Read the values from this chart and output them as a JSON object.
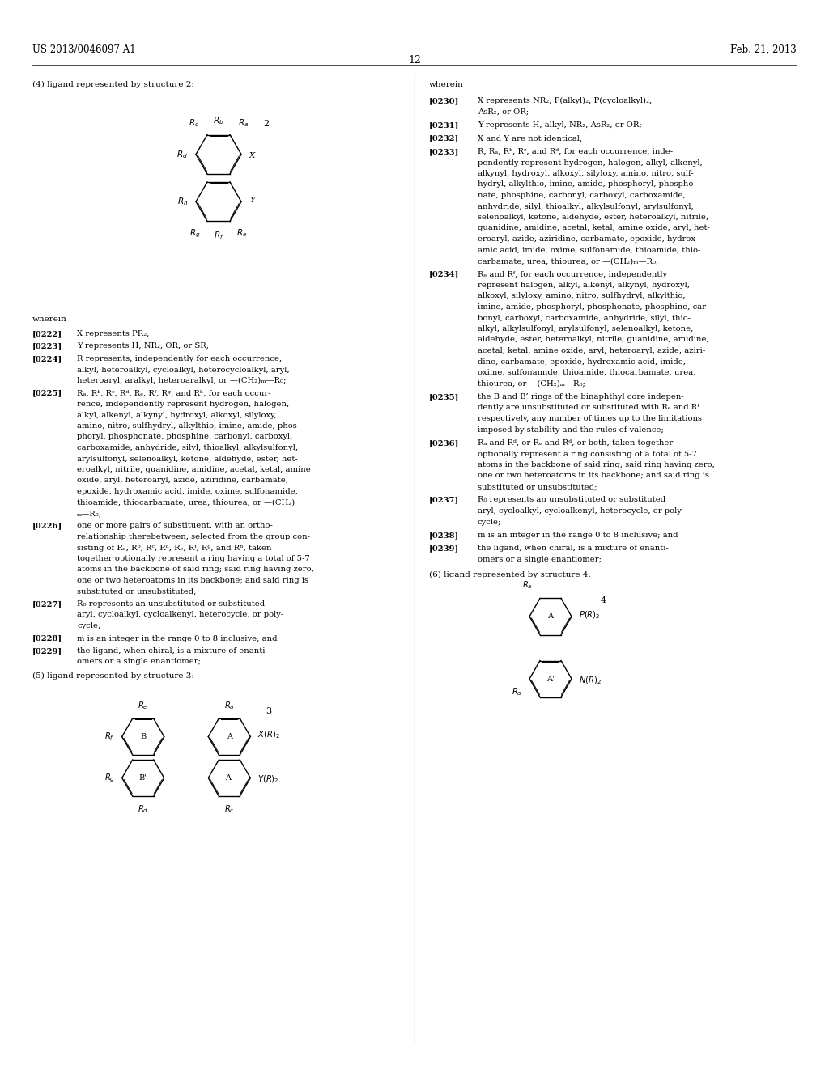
{
  "header_left": "US 2013/0046097 A1",
  "header_right": "Feb. 21, 2013",
  "page_number": "12",
  "bg_color": "#ffffff"
}
